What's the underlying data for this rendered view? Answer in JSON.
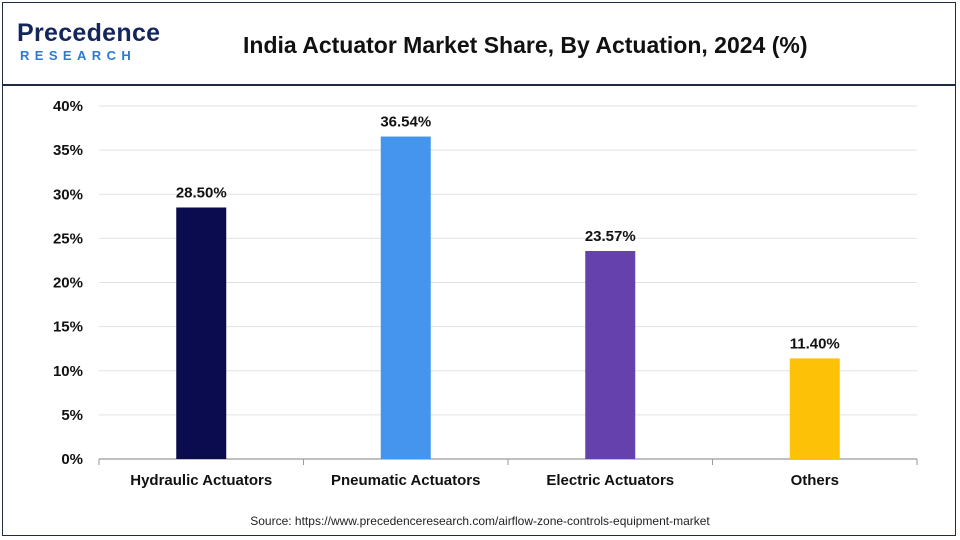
{
  "header": {
    "logo_line1": "Precedence",
    "logo_line2": "RESEARCH",
    "title": "India Actuator Market Share, By Actuation, 2024 (%)"
  },
  "footer": {
    "source": "Source: https://www.precedenceresearch.com/airflow-zone-controls-equipment-market"
  },
  "chart_data": {
    "type": "bar",
    "title": "India Actuator Market Share, By Actuation, 2024 (%)",
    "categories": [
      "Hydraulic Actuators",
      "Pneumatic Actuators",
      "Electric Actuators",
      "Others"
    ],
    "values": [
      28.5,
      36.54,
      23.57,
      11.4
    ],
    "data_labels": [
      "28.50%",
      "36.54%",
      "23.57%",
      "11.40%"
    ],
    "colors": [
      "#0b0b4f",
      "#4594ee",
      "#6441ad",
      "#fdc108"
    ],
    "ylim": [
      0,
      40
    ],
    "yticks": [
      0,
      5,
      10,
      15,
      20,
      25,
      30,
      35,
      40
    ],
    "ytick_labels": [
      "0%",
      "5%",
      "10%",
      "15%",
      "20%",
      "25%",
      "30%",
      "35%",
      "40%"
    ],
    "grid": true,
    "xlabel": "",
    "ylabel": ""
  }
}
